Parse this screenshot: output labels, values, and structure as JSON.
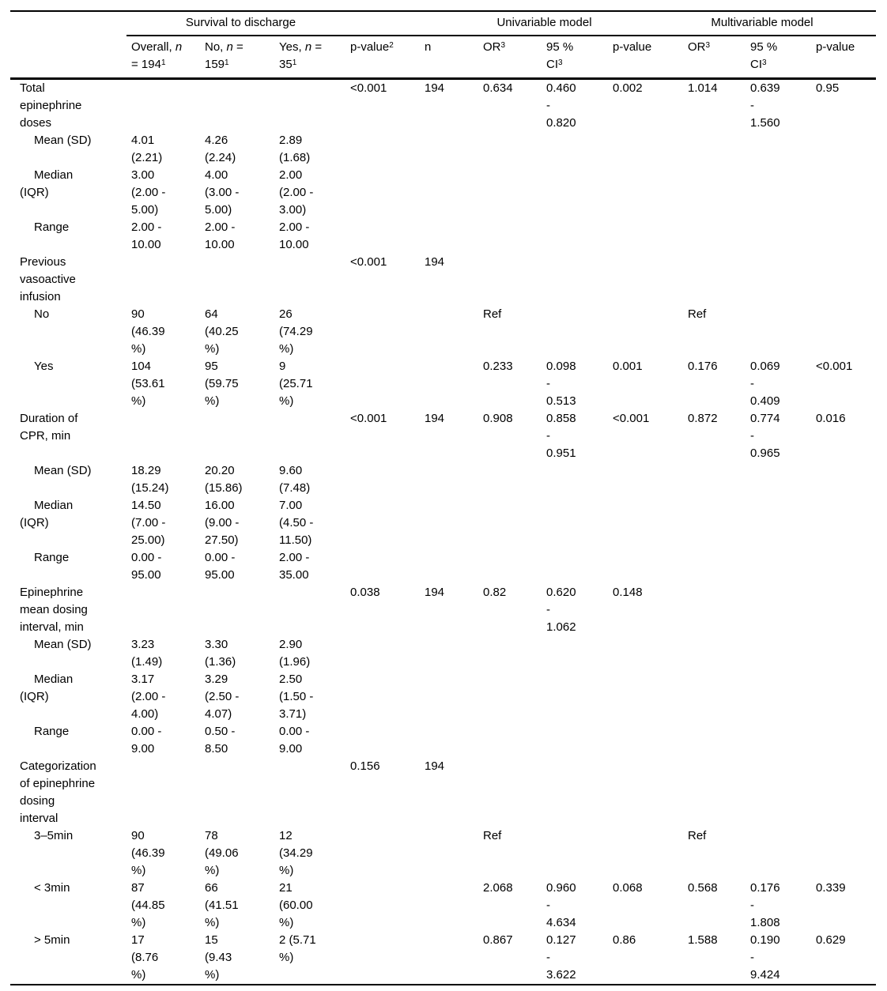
{
  "colors": {
    "text": "#000000",
    "rule": "#000000",
    "background": "#ffffff"
  },
  "table": {
    "groups": [
      {
        "label": "",
        "span": 1
      },
      {
        "label": "Survival to discharge",
        "span": 3
      },
      {
        "label": "",
        "span": 1
      },
      {
        "label": "Univariable model",
        "span": 4
      },
      {
        "label": "Multivariable model",
        "span": 3
      }
    ],
    "columns": [
      {
        "name": "row-label",
        "segments": []
      },
      {
        "name": "overall",
        "segments": [
          {
            "t": "Overall, "
          },
          {
            "t": "n",
            "i": true
          },
          {
            "br": true
          },
          {
            "t": "= 194"
          },
          {
            "t": "1",
            "sup": true
          }
        ]
      },
      {
        "name": "no",
        "segments": [
          {
            "t": "No, "
          },
          {
            "t": "n",
            "i": true
          },
          {
            "t": " ="
          },
          {
            "br": true
          },
          {
            "t": "159"
          },
          {
            "t": "1",
            "sup": true
          }
        ]
      },
      {
        "name": "yes",
        "segments": [
          {
            "t": "Yes, "
          },
          {
            "t": "n",
            "i": true
          },
          {
            "t": " ="
          },
          {
            "br": true
          },
          {
            "t": "35"
          },
          {
            "t": "1",
            "sup": true
          }
        ]
      },
      {
        "name": "p-value-2",
        "segments": [
          {
            "t": "p-value"
          },
          {
            "t": "2",
            "sup": true
          }
        ]
      },
      {
        "name": "n",
        "segments": [
          {
            "t": "n"
          }
        ]
      },
      {
        "name": "uni-or",
        "segments": [
          {
            "t": "OR"
          },
          {
            "t": "3",
            "sup": true
          }
        ]
      },
      {
        "name": "uni-ci",
        "segments": [
          {
            "t": "95 %"
          },
          {
            "br": true
          },
          {
            "t": "CI"
          },
          {
            "t": "3",
            "sup": true
          }
        ]
      },
      {
        "name": "uni-p",
        "segments": [
          {
            "t": "p-value"
          }
        ]
      },
      {
        "name": "multi-or",
        "segments": [
          {
            "t": "OR"
          },
          {
            "t": "3",
            "sup": true
          }
        ]
      },
      {
        "name": "multi-ci",
        "segments": [
          {
            "t": "95 %"
          },
          {
            "br": true
          },
          {
            "t": "CI"
          },
          {
            "t": "3",
            "sup": true
          }
        ]
      },
      {
        "name": "multi-p",
        "segments": [
          {
            "t": "p-value"
          }
        ]
      }
    ],
    "rows": [
      {
        "label": "Total\nepinephrine\ndoses",
        "indent": false,
        "cells": [
          "",
          "",
          "",
          "<0.001",
          "194",
          "0.634",
          "0.460\n-\n0.820",
          "0.002",
          "1.014",
          "0.639\n-\n1.560",
          "0.95"
        ]
      },
      {
        "label": "Mean (SD)",
        "indent": true,
        "cells": [
          "4.01\n(2.21)",
          "4.26\n(2.24)",
          "2.89\n(1.68)",
          "",
          "",
          "",
          "",
          "",
          "",
          "",
          ""
        ]
      },
      {
        "label": "Median\n(IQR)",
        "indent": true,
        "cells": [
          "3.00\n(2.00 -\n5.00)",
          "4.00\n(3.00 -\n5.00)",
          "2.00\n(2.00 -\n3.00)",
          "",
          "",
          "",
          "",
          "",
          "",
          "",
          ""
        ]
      },
      {
        "label": "Range",
        "indent": true,
        "cells": [
          "2.00 -\n10.00",
          "2.00 -\n10.00",
          "2.00 -\n10.00",
          "",
          "",
          "",
          "",
          "",
          "",
          "",
          ""
        ]
      },
      {
        "label": "Previous\nvasoactive\ninfusion",
        "indent": false,
        "cells": [
          "",
          "",
          "",
          "<0.001",
          "194",
          "",
          "",
          "",
          "",
          "",
          ""
        ]
      },
      {
        "label": "No",
        "indent": true,
        "cells": [
          "90\n(46.39\n%)",
          "64\n(40.25\n%)",
          "26\n(74.29\n%)",
          "",
          "",
          "Ref",
          "",
          "",
          "Ref",
          "",
          ""
        ]
      },
      {
        "label": "Yes",
        "indent": true,
        "cells": [
          "104\n(53.61\n%)",
          "95\n(59.75\n%)",
          "9\n(25.71\n%)",
          "",
          "",
          "0.233",
          "0.098\n-\n0.513",
          "0.001",
          "0.176",
          "0.069\n-\n0.409",
          "<0.001"
        ]
      },
      {
        "label": "Duration of\nCPR, min",
        "indent": false,
        "cells": [
          "",
          "",
          "",
          "<0.001",
          "194",
          "0.908",
          "0.858\n-\n0.951",
          "<0.001",
          "0.872",
          "0.774\n-\n0.965",
          "0.016"
        ]
      },
      {
        "label": "Mean (SD)",
        "indent": true,
        "cells": [
          "18.29\n(15.24)",
          "20.20\n(15.86)",
          "9.60\n(7.48)",
          "",
          "",
          "",
          "",
          "",
          "",
          "",
          ""
        ]
      },
      {
        "label": "Median\n(IQR)",
        "indent": true,
        "cells": [
          "14.50\n(7.00 -\n25.00)",
          "16.00\n(9.00 -\n27.50)",
          "7.00\n(4.50 -\n11.50)",
          "",
          "",
          "",
          "",
          "",
          "",
          "",
          ""
        ]
      },
      {
        "label": "Range",
        "indent": true,
        "cells": [
          "0.00 -\n95.00",
          "0.00 -\n95.00",
          "2.00 -\n35.00",
          "",
          "",
          "",
          "",
          "",
          "",
          "",
          ""
        ]
      },
      {
        "label": "Epinephrine\nmean dosing\ninterval, min",
        "indent": false,
        "cells": [
          "",
          "",
          "",
          "0.038",
          "194",
          "0.82",
          "0.620\n-\n1.062",
          "0.148",
          "",
          "",
          ""
        ]
      },
      {
        "label": "Mean (SD)",
        "indent": true,
        "cells": [
          "3.23\n(1.49)",
          "3.30\n(1.36)",
          "2.90\n(1.96)",
          "",
          "",
          "",
          "",
          "",
          "",
          "",
          ""
        ]
      },
      {
        "label": "Median\n(IQR)",
        "indent": true,
        "cells": [
          "3.17\n(2.00 -\n4.00)",
          "3.29\n(2.50 -\n4.07)",
          "2.50\n(1.50 -\n3.71)",
          "",
          "",
          "",
          "",
          "",
          "",
          "",
          ""
        ]
      },
      {
        "label": "Range",
        "indent": true,
        "cells": [
          "0.00 -\n9.00",
          "0.50 -\n8.50",
          "0.00 -\n9.00",
          "",
          "",
          "",
          "",
          "",
          "",
          "",
          ""
        ]
      },
      {
        "label": "Categorization\nof epinephrine\ndosing\ninterval",
        "indent": false,
        "cells": [
          "",
          "",
          "",
          "0.156",
          "194",
          "",
          "",
          "",
          "",
          "",
          ""
        ]
      },
      {
        "label": "3–5min",
        "indent": true,
        "cells": [
          "90\n(46.39\n%)",
          "78\n(49.06\n%)",
          "12\n(34.29\n%)",
          "",
          "",
          "Ref",
          "",
          "",
          "Ref",
          "",
          ""
        ]
      },
      {
        "label": "< 3min",
        "indent": true,
        "cells": [
          "87\n(44.85\n%)",
          "66\n(41.51\n%)",
          "21\n(60.00\n%)",
          "",
          "",
          "2.068",
          "0.960\n-\n4.634",
          "0.068",
          "0.568",
          "0.176\n-\n1.808",
          "0.339"
        ]
      },
      {
        "label": "> 5min",
        "indent": true,
        "cells": [
          "17\n(8.76\n%)",
          "15\n(9.43\n%)",
          "2 (5.71\n%)",
          "",
          "",
          "0.867",
          "0.127\n-\n3.622",
          "0.86",
          "1.588",
          "0.190\n-\n9.424",
          "0.629"
        ]
      }
    ]
  }
}
